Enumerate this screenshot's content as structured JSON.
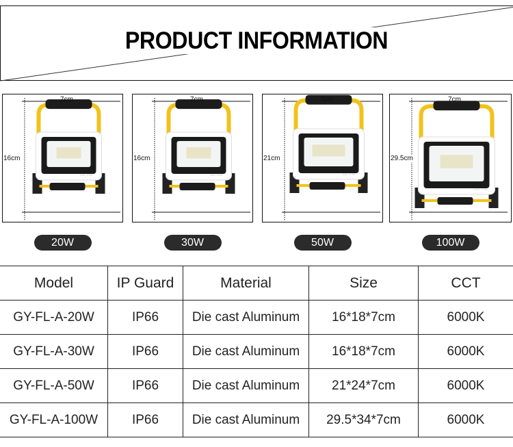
{
  "header": {
    "title": "PRODUCT INFORMATION"
  },
  "products": [
    {
      "power": "20W",
      "width_label": "7cm",
      "height_label": "16cm",
      "lamp_label": "20W  IP66"
    },
    {
      "power": "30W",
      "width_label": "7cm",
      "height_label": "16cm",
      "lamp_label": "30W  IP66"
    },
    {
      "power": "50W",
      "width_label": "7cm",
      "height_label": "21cm",
      "lamp_label": "50W  IP66"
    },
    {
      "power": "100W",
      "width_label": "7cm",
      "height_label": "29.5cm",
      "lamp_label": "100W  IP66"
    }
  ],
  "colors": {
    "frame": "#f2c21b",
    "body": "#ffffff",
    "bezel": "#1a1a1a",
    "pill": "#2b2b2b"
  },
  "table": {
    "headers": [
      "Model",
      "IP Guard",
      "Material",
      "Size",
      "CCT"
    ],
    "rows": [
      [
        "GY-FL-A-20W",
        "IP66",
        "Die cast Aluminum",
        "16*18*7cm",
        "6000K"
      ],
      [
        "GY-FL-A-30W",
        "IP66",
        "Die cast Aluminum",
        "16*18*7cm",
        "6000K"
      ],
      [
        "GY-FL-A-50W",
        "IP66",
        "Die cast Aluminum",
        "21*24*7cm",
        "6000K"
      ],
      [
        "GY-FL-A-100W",
        "IP66",
        "Die cast Aluminum",
        "29.5*34*7cm",
        "6000K"
      ]
    ]
  }
}
